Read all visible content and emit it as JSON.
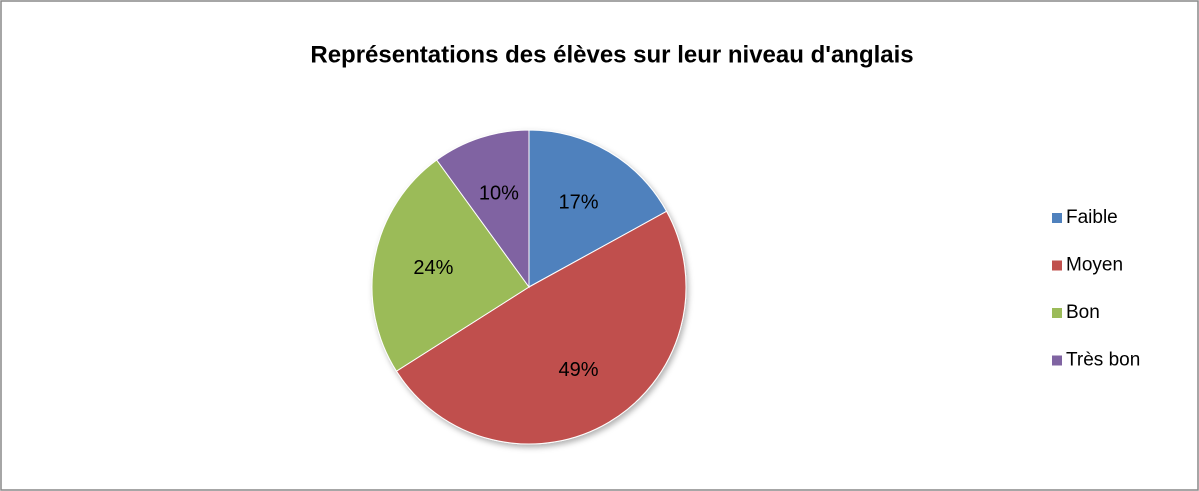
{
  "chart_data": {
    "type": "pie",
    "title": "Représentations des élèves sur leur niveau d'anglais",
    "categories": [
      "Faible",
      "Moyen",
      "Bon",
      "Très bon"
    ],
    "values": [
      17,
      49,
      24,
      10
    ],
    "value_labels": [
      "17%",
      "49%",
      "24%",
      "10%"
    ],
    "colors": [
      "#4f81bd",
      "#c0504d",
      "#9bbb59",
      "#8064a2"
    ],
    "legend": "right"
  }
}
